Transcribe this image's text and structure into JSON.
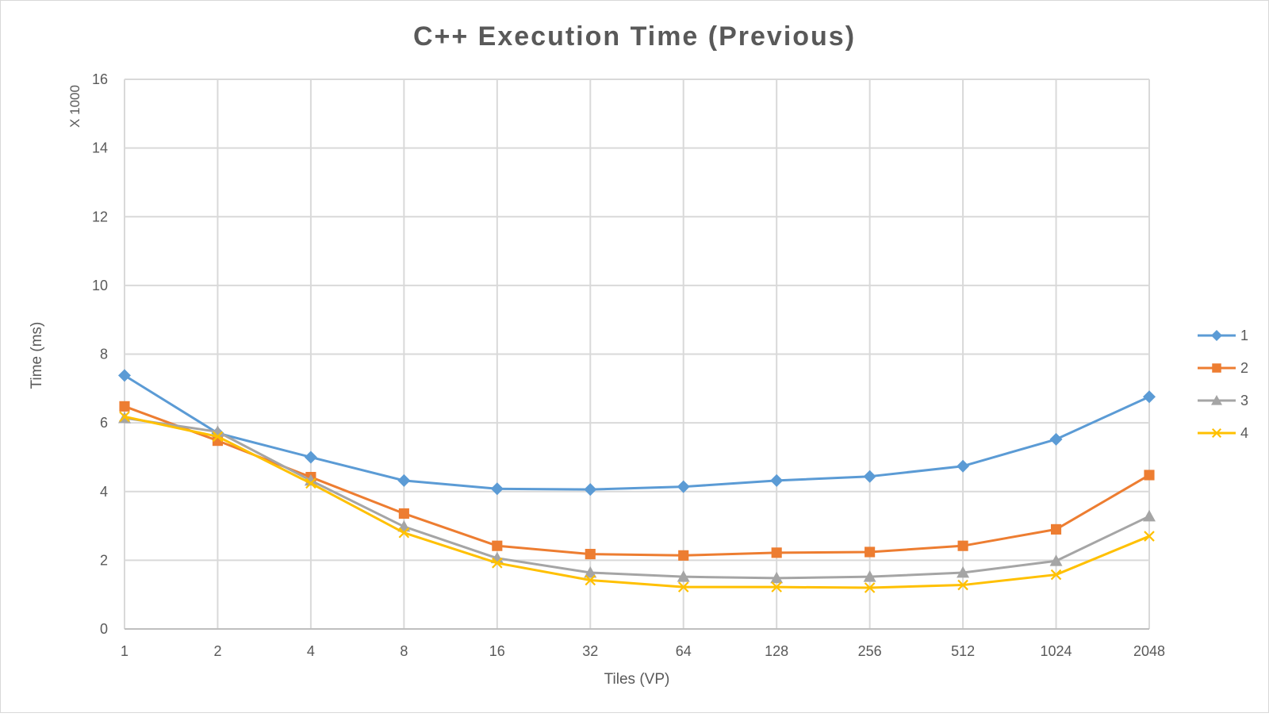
{
  "chart_data": {
    "type": "line",
    "title": "C++ Execution Time (Previous)",
    "xlabel": "Tiles (VP)",
    "ylabel": "Time (ms)",
    "y_unit_label": "X 1000",
    "categories": [
      "1",
      "2",
      "4",
      "8",
      "16",
      "32",
      "64",
      "128",
      "256",
      "512",
      "1024",
      "2048"
    ],
    "ylim": [
      0,
      16
    ],
    "yticks": [
      "0",
      "2",
      "4",
      "6",
      "8",
      "10",
      "12",
      "14",
      "16"
    ],
    "grid": true,
    "legend_position": "right",
    "series": [
      {
        "name": "1",
        "color": "#5b9bd5",
        "marker": "diamond",
        "values": [
          7.38,
          5.7,
          5.0,
          4.32,
          4.08,
          4.06,
          4.14,
          4.32,
          4.44,
          4.74,
          5.52,
          6.76
        ]
      },
      {
        "name": "2",
        "color": "#ed7d31",
        "marker": "square",
        "values": [
          6.48,
          5.48,
          4.42,
          3.36,
          2.42,
          2.18,
          2.14,
          2.22,
          2.24,
          2.42,
          2.9,
          4.48
        ]
      },
      {
        "name": "3",
        "color": "#a5a5a5",
        "marker": "triangle",
        "values": [
          6.14,
          5.74,
          4.32,
          2.98,
          2.06,
          1.64,
          1.52,
          1.48,
          1.52,
          1.64,
          1.98,
          3.28
        ]
      },
      {
        "name": "4",
        "color": "#ffc000",
        "marker": "x",
        "values": [
          6.18,
          5.6,
          4.24,
          2.8,
          1.92,
          1.42,
          1.22,
          1.22,
          1.2,
          1.28,
          1.58,
          2.7
        ]
      }
    ]
  }
}
